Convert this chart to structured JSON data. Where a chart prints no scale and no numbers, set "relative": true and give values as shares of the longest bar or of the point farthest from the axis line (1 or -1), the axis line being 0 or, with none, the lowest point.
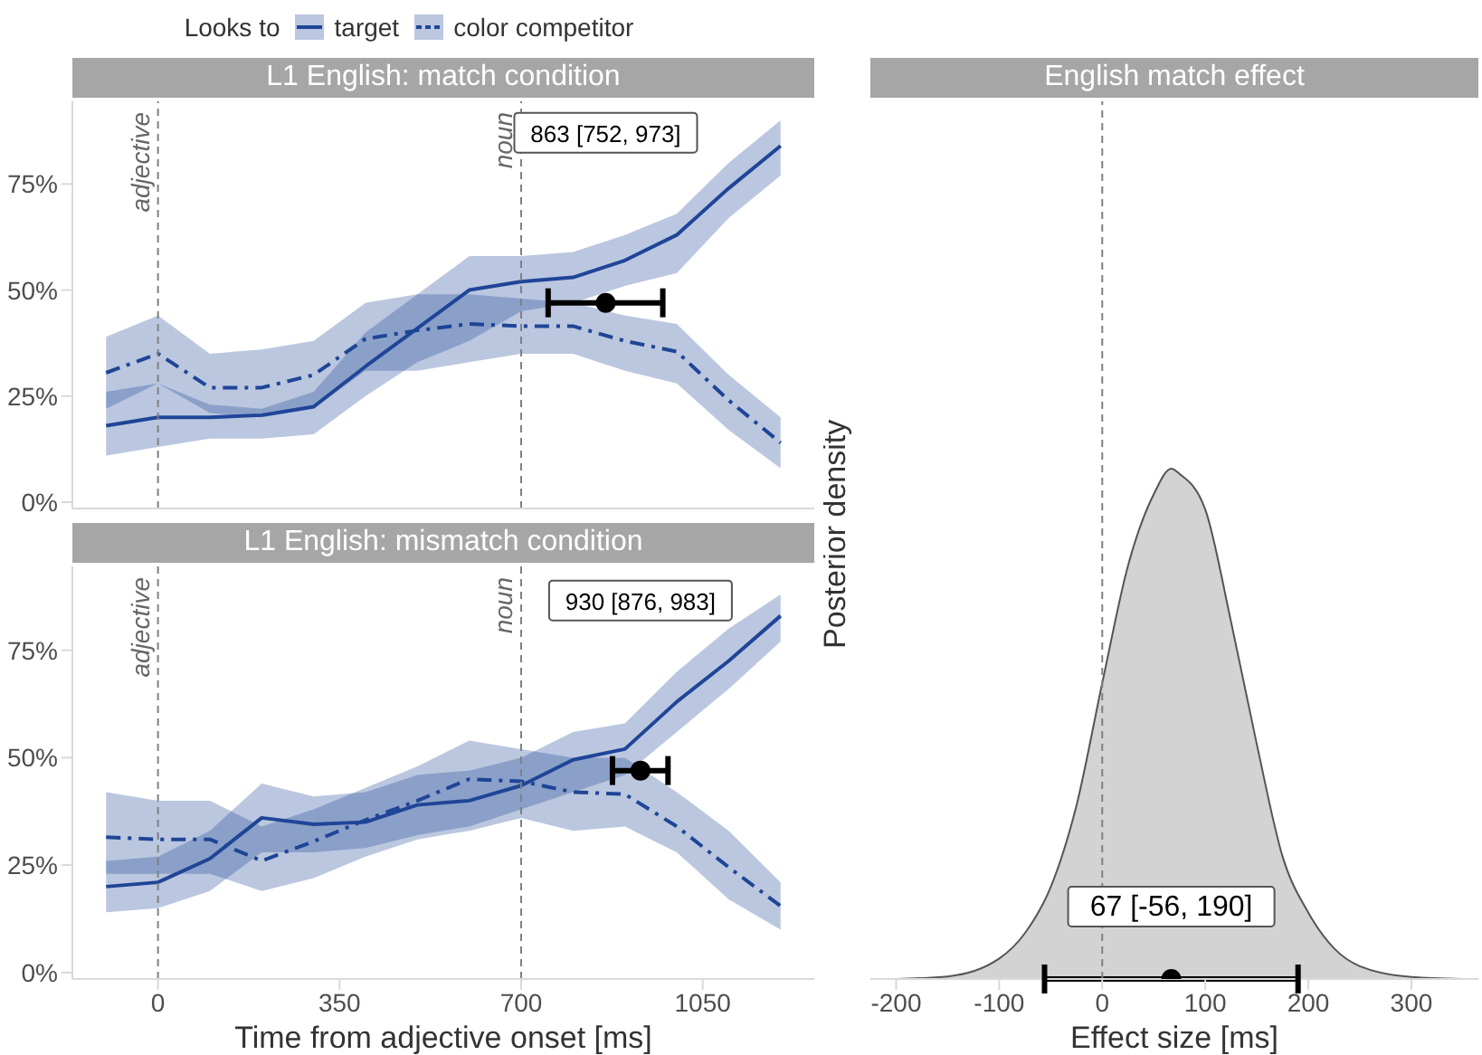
{
  "chart_data": [
    {
      "type": "line",
      "title": "L1 English: match condition",
      "legend_title": "Looks to",
      "legend": "top",
      "grid": false,
      "tick_labels": "y",
      "x": [
        -100,
        0,
        100,
        200,
        300,
        400,
        500,
        600,
        700,
        800,
        900,
        1000,
        1100,
        1200
      ],
      "xlim": [
        -165,
        1265
      ],
      "xticks": [
        0,
        350,
        700,
        1050
      ],
      "ylim": [
        -1.5,
        94.5
      ],
      "yticks": [
        {
          "value": 0,
          "label": "0%"
        },
        {
          "value": 25,
          "label": "25%"
        },
        {
          "value": 50,
          "label": "50%"
        },
        {
          "value": 75,
          "label": "75%"
        }
      ],
      "series": [
        {
          "name": "target",
          "color": "#1f4597",
          "line_style": "solid",
          "values": [
            18,
            20,
            20,
            20.5,
            22.5,
            32,
            41,
            50,
            52,
            53,
            57,
            63,
            74,
            84
          ],
          "lower": [
            11,
            13,
            15,
            15,
            16,
            25,
            33,
            38,
            45,
            47,
            51,
            54,
            67,
            77
          ],
          "upper": [
            26,
            28,
            23,
            22,
            26,
            40,
            49,
            58,
            58,
            59,
            63,
            68,
            80,
            90
          ]
        },
        {
          "name": "color competitor",
          "color": "#1e4596",
          "line_style": "dashed",
          "values": [
            30.5,
            35,
            27,
            27,
            30,
            38.5,
            40.5,
            42,
            41.5,
            41.5,
            38,
            35.5,
            24,
            14
          ],
          "lower": [
            22,
            28,
            21,
            20,
            22,
            31,
            31,
            33,
            35,
            35,
            31,
            28,
            17,
            8
          ],
          "upper": [
            39,
            44,
            35,
            36,
            38,
            47,
            49,
            49,
            48,
            47,
            44,
            42,
            30,
            20
          ]
        },
        {
          "type": "scatter",
          "color": "#000000",
          "x": [
            863
          ],
          "values": [
            47
          ],
          "xerrors": [
            [
              752,
              973
            ]
          ]
        }
      ],
      "ref_lines": [
        {
          "axis": "x",
          "value": 0,
          "label": "adjective",
          "color": "#808080",
          "line_style": "dashed"
        },
        {
          "axis": "x",
          "value": 700,
          "label": "noun",
          "color": "#808080",
          "line_style": "dashed"
        }
      ],
      "annotations": [
        "863 [752, 973]"
      ]
    },
    {
      "type": "line",
      "title": "L1 English: mismatch condition",
      "xlabel": "Time from adjective onset [ms]",
      "grid": false,
      "x": [
        -100,
        0,
        100,
        200,
        300,
        400,
        500,
        600,
        700,
        800,
        900,
        1000,
        1100,
        1200
      ],
      "xlim": [
        -165,
        1265
      ],
      "xticks": [
        0,
        350,
        700,
        1050
      ],
      "ylim": [
        -1.5,
        94.5
      ],
      "yticks": [
        {
          "value": 0,
          "label": "0%"
        },
        {
          "value": 25,
          "label": "25%"
        },
        {
          "value": 50,
          "label": "50%"
        },
        {
          "value": 75,
          "label": "75%"
        }
      ],
      "series": [
        {
          "color": "#1f4597",
          "line_style": "solid",
          "values": [
            20,
            21,
            26.5,
            36,
            34.5,
            35,
            39,
            40,
            43.5,
            49.5,
            52,
            63,
            72.5,
            83
          ],
          "lower": [
            14,
            15,
            19,
            28,
            28,
            29,
            32,
            34,
            38,
            42,
            46,
            56,
            66,
            77
          ],
          "upper": [
            26,
            27,
            33,
            44,
            41,
            42,
            46,
            47,
            50,
            56,
            58,
            70,
            80,
            88
          ]
        },
        {
          "color": "#1e4596",
          "line_style": "dashed",
          "values": [
            31.5,
            31,
            31,
            26,
            30.5,
            35.5,
            40,
            45,
            44.5,
            42,
            41.5,
            34,
            24.5,
            15.5
          ],
          "lower": [
            23,
            23,
            23,
            19,
            22,
            27,
            31,
            33,
            36,
            33,
            34,
            28,
            17,
            10
          ],
          "upper": [
            42,
            40,
            40,
            34,
            38,
            43,
            48,
            54,
            52,
            50,
            50,
            42,
            33,
            21
          ]
        },
        {
          "type": "scatter",
          "color": "#000000",
          "x": [
            930
          ],
          "values": [
            47
          ],
          "xerrors": [
            [
              876,
              983
            ]
          ]
        }
      ],
      "ref_lines": [
        {
          "axis": "x",
          "value": 0,
          "label": "adjective",
          "color": "#808080",
          "line_style": "dashed"
        },
        {
          "axis": "x",
          "value": 700,
          "label": "noun",
          "color": "#808080",
          "line_style": "dashed"
        }
      ],
      "annotations": [
        "930 [876, 983]"
      ]
    },
    {
      "type": "area",
      "title": "English match effect",
      "xlabel": "Effect size [ms]",
      "ylabel": "Posterior density",
      "relative": true,
      "grid": false,
      "tick_labels": "x",
      "x": [
        -200,
        -150,
        -100,
        -75,
        -50,
        -25,
        0,
        25,
        50,
        67,
        75,
        100,
        125,
        150,
        175,
        200,
        225,
        250,
        300,
        350
      ],
      "xlim": [
        -225,
        365
      ],
      "xticks": [
        -200,
        -100,
        0,
        100,
        200,
        300
      ],
      "series": [
        {
          "color": "#d3d3d3",
          "values": [
            0,
            0.005,
            0.04,
            0.09,
            0.18,
            0.34,
            0.58,
            0.81,
            0.95,
            1,
            0.99,
            0.92,
            0.7,
            0.46,
            0.24,
            0.13,
            0.06,
            0.025,
            0.004,
            0
          ]
        },
        {
          "type": "scatter",
          "color": "#000000",
          "x": [
            67
          ],
          "values": [
            0
          ],
          "xerrors": [
            [
              -56,
              190
            ]
          ]
        }
      ],
      "ref_lines": [
        {
          "axis": "x",
          "value": 0,
          "color": "#808080",
          "line_style": "dashed"
        }
      ],
      "annotations": [
        "67 [-56, 190]"
      ]
    }
  ]
}
